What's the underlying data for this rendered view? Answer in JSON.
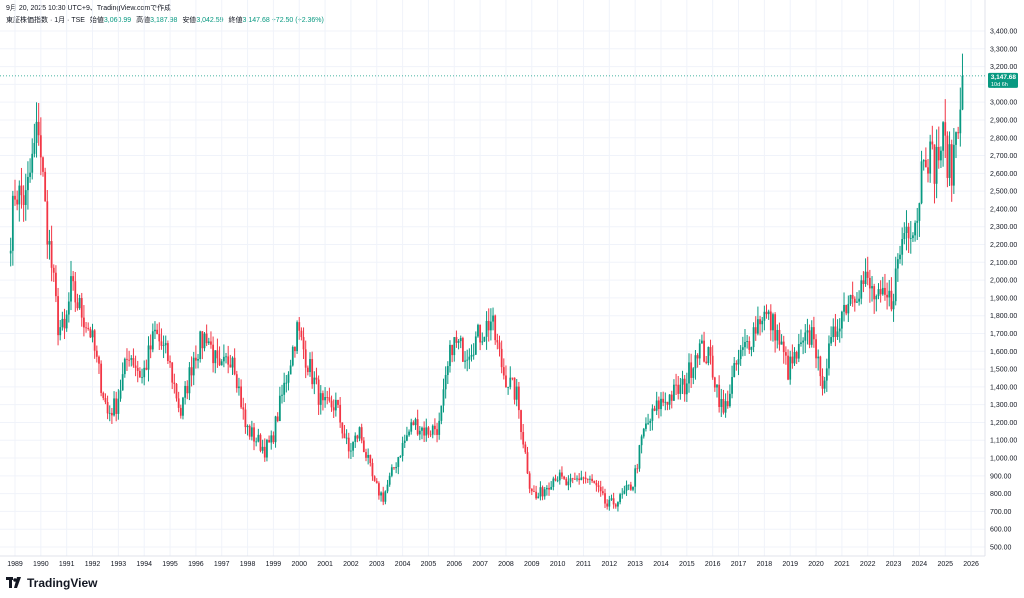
{
  "header": {
    "text": "9月 20, 2025 10:30 UTC+9、TradingView.comで作成"
  },
  "legend": {
    "symbol": "東証株価指数 · 1月 · TSE",
    "open_label": "始値",
    "open_value": "3,060.99",
    "high_label": "高値",
    "high_value": "3,187.98",
    "low_label": "安値",
    "low_value": "3,042.59",
    "close_label": "終値",
    "close_value": "3,147.68",
    "change": "+72.50 (+2.36%)"
  },
  "price_badge": {
    "price": "3,147.68",
    "countdown": "10d 6h"
  },
  "brand": {
    "name": "TradingView"
  },
  "colors": {
    "up": "#089981",
    "down": "#f23645",
    "grid": "#f0f3fa",
    "price_line": "#089981"
  },
  "chart_data": {
    "type": "candlestick",
    "title": "東証株価指数 · 1月 · TSE",
    "interval": "1 month",
    "x_tick_labels": [
      "1989",
      "1990",
      "1991",
      "1992",
      "1993",
      "1994",
      "1995",
      "1996",
      "1997",
      "1998",
      "1999",
      "2000",
      "2001",
      "2002",
      "2003",
      "2004",
      "2005",
      "2006",
      "2007",
      "2008",
      "2009",
      "2010",
      "2011",
      "2012",
      "2013",
      "2014",
      "2015",
      "2016",
      "2017",
      "2018",
      "2019",
      "2020",
      "2021",
      "2022",
      "2023",
      "2024",
      "2025",
      "2026"
    ],
    "y_tick_labels": [
      "3,400.00",
      "3,300.00",
      "3,200.00",
      "3,100.00",
      "3,000.00",
      "2,900.00",
      "2,800.00",
      "2,700.00",
      "2,600.00",
      "2,500.00",
      "2,400.00",
      "2,300.00",
      "2,200.00",
      "2,100.00",
      "2,000.00",
      "1,900.00",
      "1,800.00",
      "1,700.00",
      "1,600.00",
      "1,500.00",
      "1,400.00",
      "1,300.00",
      "1,200.00",
      "1,100.00",
      "1,000.00",
      "900.00",
      "800.00",
      "700.00",
      "600.00",
      "500.00"
    ],
    "ylim": [
      440,
      3430
    ],
    "last_price": 3147.68,
    "grid": true,
    "approx_monthly_closes": [
      {
        "date": "1988-10",
        "close": 2150
      },
      {
        "date": "1989-01",
        "close": 2500
      },
      {
        "date": "1989-06",
        "close": 2450
      },
      {
        "date": "1989-12",
        "close": 2881
      },
      {
        "date": "1990-03",
        "close": 2400
      },
      {
        "date": "1990-09",
        "close": 1750
      },
      {
        "date": "1990-12",
        "close": 1700
      },
      {
        "date": "1991-03",
        "close": 1950
      },
      {
        "date": "1991-12",
        "close": 1710
      },
      {
        "date": "1992-08",
        "close": 1250
      },
      {
        "date": "1992-12",
        "close": 1300
      },
      {
        "date": "1993-06",
        "close": 1600
      },
      {
        "date": "1993-12",
        "close": 1450
      },
      {
        "date": "1994-06",
        "close": 1700
      },
      {
        "date": "1994-12",
        "close": 1560
      },
      {
        "date": "1995-06",
        "close": 1250
      },
      {
        "date": "1995-12",
        "close": 1577
      },
      {
        "date": "1996-06",
        "close": 1700
      },
      {
        "date": "1996-12",
        "close": 1470
      },
      {
        "date": "1997-06",
        "close": 1600
      },
      {
        "date": "1997-12",
        "close": 1175
      },
      {
        "date": "1998-09",
        "close": 1050
      },
      {
        "date": "1998-12",
        "close": 1086
      },
      {
        "date": "1999-06",
        "close": 1400
      },
      {
        "date": "1999-12",
        "close": 1722
      },
      {
        "date": "2000-06",
        "close": 1500
      },
      {
        "date": "2000-12",
        "close": 1283
      },
      {
        "date": "2001-06",
        "close": 1300
      },
      {
        "date": "2001-12",
        "close": 1032
      },
      {
        "date": "2002-05",
        "close": 1150
      },
      {
        "date": "2002-12",
        "close": 843
      },
      {
        "date": "2003-04",
        "close": 780
      },
      {
        "date": "2003-12",
        "close": 1043
      },
      {
        "date": "2004-06",
        "close": 1200
      },
      {
        "date": "2004-12",
        "close": 1149
      },
      {
        "date": "2005-06",
        "close": 1180
      },
      {
        "date": "2005-12",
        "close": 1649
      },
      {
        "date": "2006-06",
        "close": 1600
      },
      {
        "date": "2006-12",
        "close": 1681
      },
      {
        "date": "2007-06",
        "close": 1774
      },
      {
        "date": "2007-12",
        "close": 1475
      },
      {
        "date": "2008-06",
        "close": 1350
      },
      {
        "date": "2008-12",
        "close": 860
      },
      {
        "date": "2009-03",
        "close": 770
      },
      {
        "date": "2009-12",
        "close": 907
      },
      {
        "date": "2010-06",
        "close": 841
      },
      {
        "date": "2010-12",
        "close": 898
      },
      {
        "date": "2011-06",
        "close": 850
      },
      {
        "date": "2011-12",
        "close": 728
      },
      {
        "date": "2012-06",
        "close": 770
      },
      {
        "date": "2012-12",
        "close": 859
      },
      {
        "date": "2013-05",
        "close": 1150
      },
      {
        "date": "2013-12",
        "close": 1302
      },
      {
        "date": "2014-12",
        "close": 1407
      },
      {
        "date": "2015-06",
        "close": 1630
      },
      {
        "date": "2015-12",
        "close": 1547
      },
      {
        "date": "2016-06",
        "close": 1245
      },
      {
        "date": "2016-12",
        "close": 1519
      },
      {
        "date": "2017-12",
        "close": 1817
      },
      {
        "date": "2018-06",
        "close": 1730
      },
      {
        "date": "2018-12",
        "close": 1494
      },
      {
        "date": "2019-12",
        "close": 1721
      },
      {
        "date": "2020-03",
        "close": 1403
      },
      {
        "date": "2020-12",
        "close": 1804
      },
      {
        "date": "2021-06",
        "close": 1943
      },
      {
        "date": "2021-12",
        "close": 1992
      },
      {
        "date": "2022-06",
        "close": 1871
      },
      {
        "date": "2022-12",
        "close": 1892
      },
      {
        "date": "2023-06",
        "close": 2288
      },
      {
        "date": "2023-12",
        "close": 2366
      },
      {
        "date": "2024-03",
        "close": 2768
      },
      {
        "date": "2024-08",
        "close": 2650
      },
      {
        "date": "2024-12",
        "close": 2785
      },
      {
        "date": "2025-04",
        "close": 2600
      },
      {
        "date": "2025-06",
        "close": 2850
      },
      {
        "date": "2025-09",
        "close": 3147.68
      }
    ]
  }
}
